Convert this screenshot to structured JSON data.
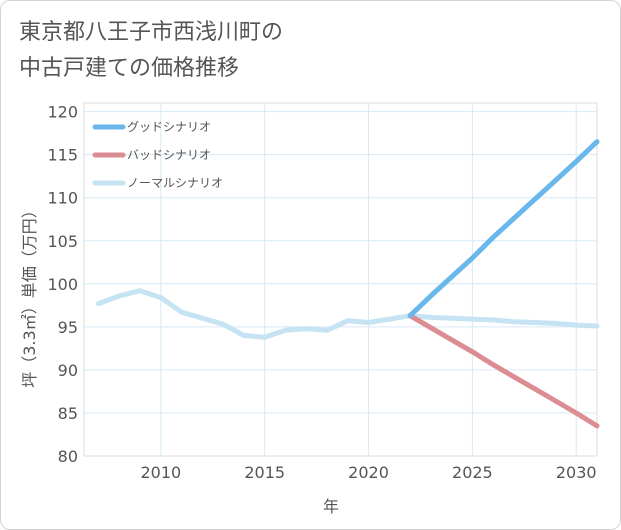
{
  "chart_data": {
    "type": "line",
    "title_lines": [
      "東京都八王子市西浅川町の",
      "中古戸建ての価格推移"
    ],
    "xlabel": "年",
    "ylabel": "坪（3.3㎡）単価（万円）",
    "xlim": [
      2006.3,
      2031
    ],
    "ylim": [
      80,
      121
    ],
    "x_ticks": [
      2010,
      2015,
      2020,
      2025,
      2030
    ],
    "y_ticks": [
      80,
      85,
      90,
      95,
      100,
      105,
      110,
      115,
      120
    ],
    "grid": true,
    "legend_position": "top-left",
    "series": [
      {
        "name": "グッドシナリオ",
        "color": "#6ab7ec",
        "x": [
          2022,
          2023,
          2024,
          2025,
          2026,
          2027,
          2028,
          2029,
          2030,
          2031
        ],
        "values": [
          96.3,
          98.6,
          100.8,
          103.0,
          105.4,
          107.6,
          109.8,
          112.0,
          114.2,
          116.5
        ]
      },
      {
        "name": "バッドシナリオ",
        "color": "#dc8d93",
        "x": [
          2022,
          2023,
          2024,
          2025,
          2026,
          2027,
          2028,
          2029,
          2030,
          2031
        ],
        "values": [
          96.3,
          94.9,
          93.5,
          92.1,
          90.6,
          89.2,
          87.8,
          86.4,
          85.0,
          83.5
        ]
      },
      {
        "name": "ノーマルシナリオ",
        "color": "#c5e3f2",
        "x": [
          2007,
          2008,
          2009,
          2010,
          2011,
          2012,
          2013,
          2014,
          2015,
          2016,
          2017,
          2018,
          2019,
          2020,
          2021,
          2022,
          2023,
          2024,
          2025,
          2026,
          2027,
          2028,
          2029,
          2030,
          2031
        ],
        "values": [
          97.7,
          98.6,
          99.2,
          98.4,
          96.7,
          96.0,
          95.3,
          94.0,
          93.8,
          94.6,
          94.8,
          94.6,
          95.7,
          95.5,
          95.9,
          96.3,
          96.1,
          96.0,
          95.9,
          95.8,
          95.6,
          95.5,
          95.4,
          95.2,
          95.1
        ]
      }
    ]
  }
}
